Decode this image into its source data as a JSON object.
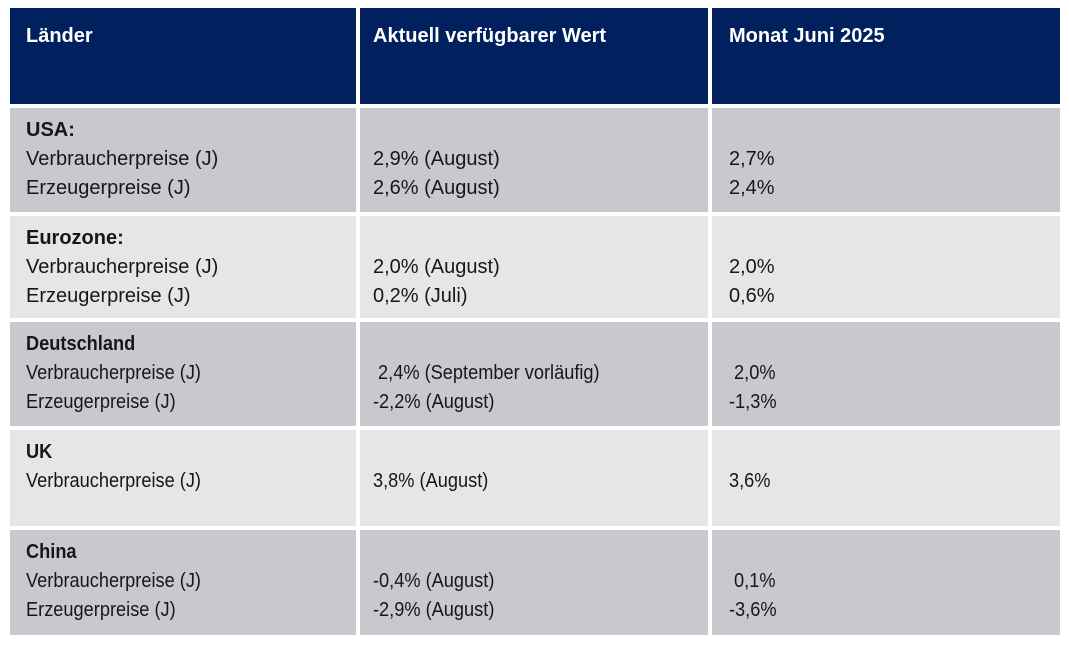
{
  "colors": {
    "header_bg": "#00215E",
    "header_text": "#FFFFFF",
    "row_dark": "#C9C9CD",
    "row_light": "#E6E6E9",
    "body_text": "#17171A"
  },
  "header": {
    "col1": "Länder",
    "col2": "Aktuell verfügbarer Wert",
    "col3": "Monat Juni 2025"
  },
  "rows": [
    {
      "country": "USA:",
      "indicators": [
        "Verbraucherpreise (J)",
        "Erzeugerpreise (J)"
      ],
      "current": [
        "2,9% (August)",
        "2,6% (August)"
      ],
      "june": [
        "2,7%",
        "2,4%"
      ]
    },
    {
      "country": "Eurozone:",
      "indicators": [
        "Verbraucherpreise (J)",
        "Erzeugerpreise (J)"
      ],
      "current": [
        "2,0% (August)",
        "0,2% (Juli)"
      ],
      "june": [
        "2,0%",
        "0,6%"
      ]
    },
    {
      "country": "Deutschland",
      "indicators": [
        "Verbraucherpreise (J)",
        "Erzeugerpreise (J)"
      ],
      "current": [
        " 2,4% (September vorläufig)",
        "-2,2% (August)"
      ],
      "june": [
        " 2,0%",
        "-1,3%"
      ]
    },
    {
      "country": "UK",
      "indicators": [
        "Verbraucherpreise (J)"
      ],
      "current": [
        "3,8% (August)"
      ],
      "june": [
        "3,6%"
      ]
    },
    {
      "country": "China",
      "indicators": [
        "Verbraucherpreise (J)",
        "Erzeugerpreise (J)"
      ],
      "current": [
        "-0,4% (August)",
        "-2,9% (August)"
      ],
      "june": [
        " 0,1%",
        "-3,6%"
      ]
    }
  ],
  "chart_data": {
    "type": "table",
    "title": "",
    "columns": [
      "Länder",
      "Aktuell verfügbarer Wert",
      "Monat Juni 2025"
    ],
    "rows": [
      {
        "country": "USA",
        "indicator": "Verbraucherpreise (J)",
        "current_value_pct": 2.9,
        "current_month": "August",
        "june_2025_pct": 2.7
      },
      {
        "country": "USA",
        "indicator": "Erzeugerpreise (J)",
        "current_value_pct": 2.6,
        "current_month": "August",
        "june_2025_pct": 2.4
      },
      {
        "country": "Eurozone",
        "indicator": "Verbraucherpreise (J)",
        "current_value_pct": 2.0,
        "current_month": "August",
        "june_2025_pct": 2.0
      },
      {
        "country": "Eurozone",
        "indicator": "Erzeugerpreise (J)",
        "current_value_pct": 0.2,
        "current_month": "Juli",
        "june_2025_pct": 0.6
      },
      {
        "country": "Deutschland",
        "indicator": "Verbraucherpreise (J)",
        "current_value_pct": 2.4,
        "current_month": "September vorläufig",
        "june_2025_pct": 2.0
      },
      {
        "country": "Deutschland",
        "indicator": "Erzeugerpreise (J)",
        "current_value_pct": -2.2,
        "current_month": "August",
        "june_2025_pct": -1.3
      },
      {
        "country": "UK",
        "indicator": "Verbraucherpreise (J)",
        "current_value_pct": 3.8,
        "current_month": "August",
        "june_2025_pct": 3.6
      },
      {
        "country": "China",
        "indicator": "Verbraucherpreise (J)",
        "current_value_pct": -0.4,
        "current_month": "August",
        "june_2025_pct": 0.1
      },
      {
        "country": "China",
        "indicator": "Erzeugerpreise (J)",
        "current_value_pct": -2.9,
        "current_month": "August",
        "june_2025_pct": -3.6
      }
    ]
  }
}
